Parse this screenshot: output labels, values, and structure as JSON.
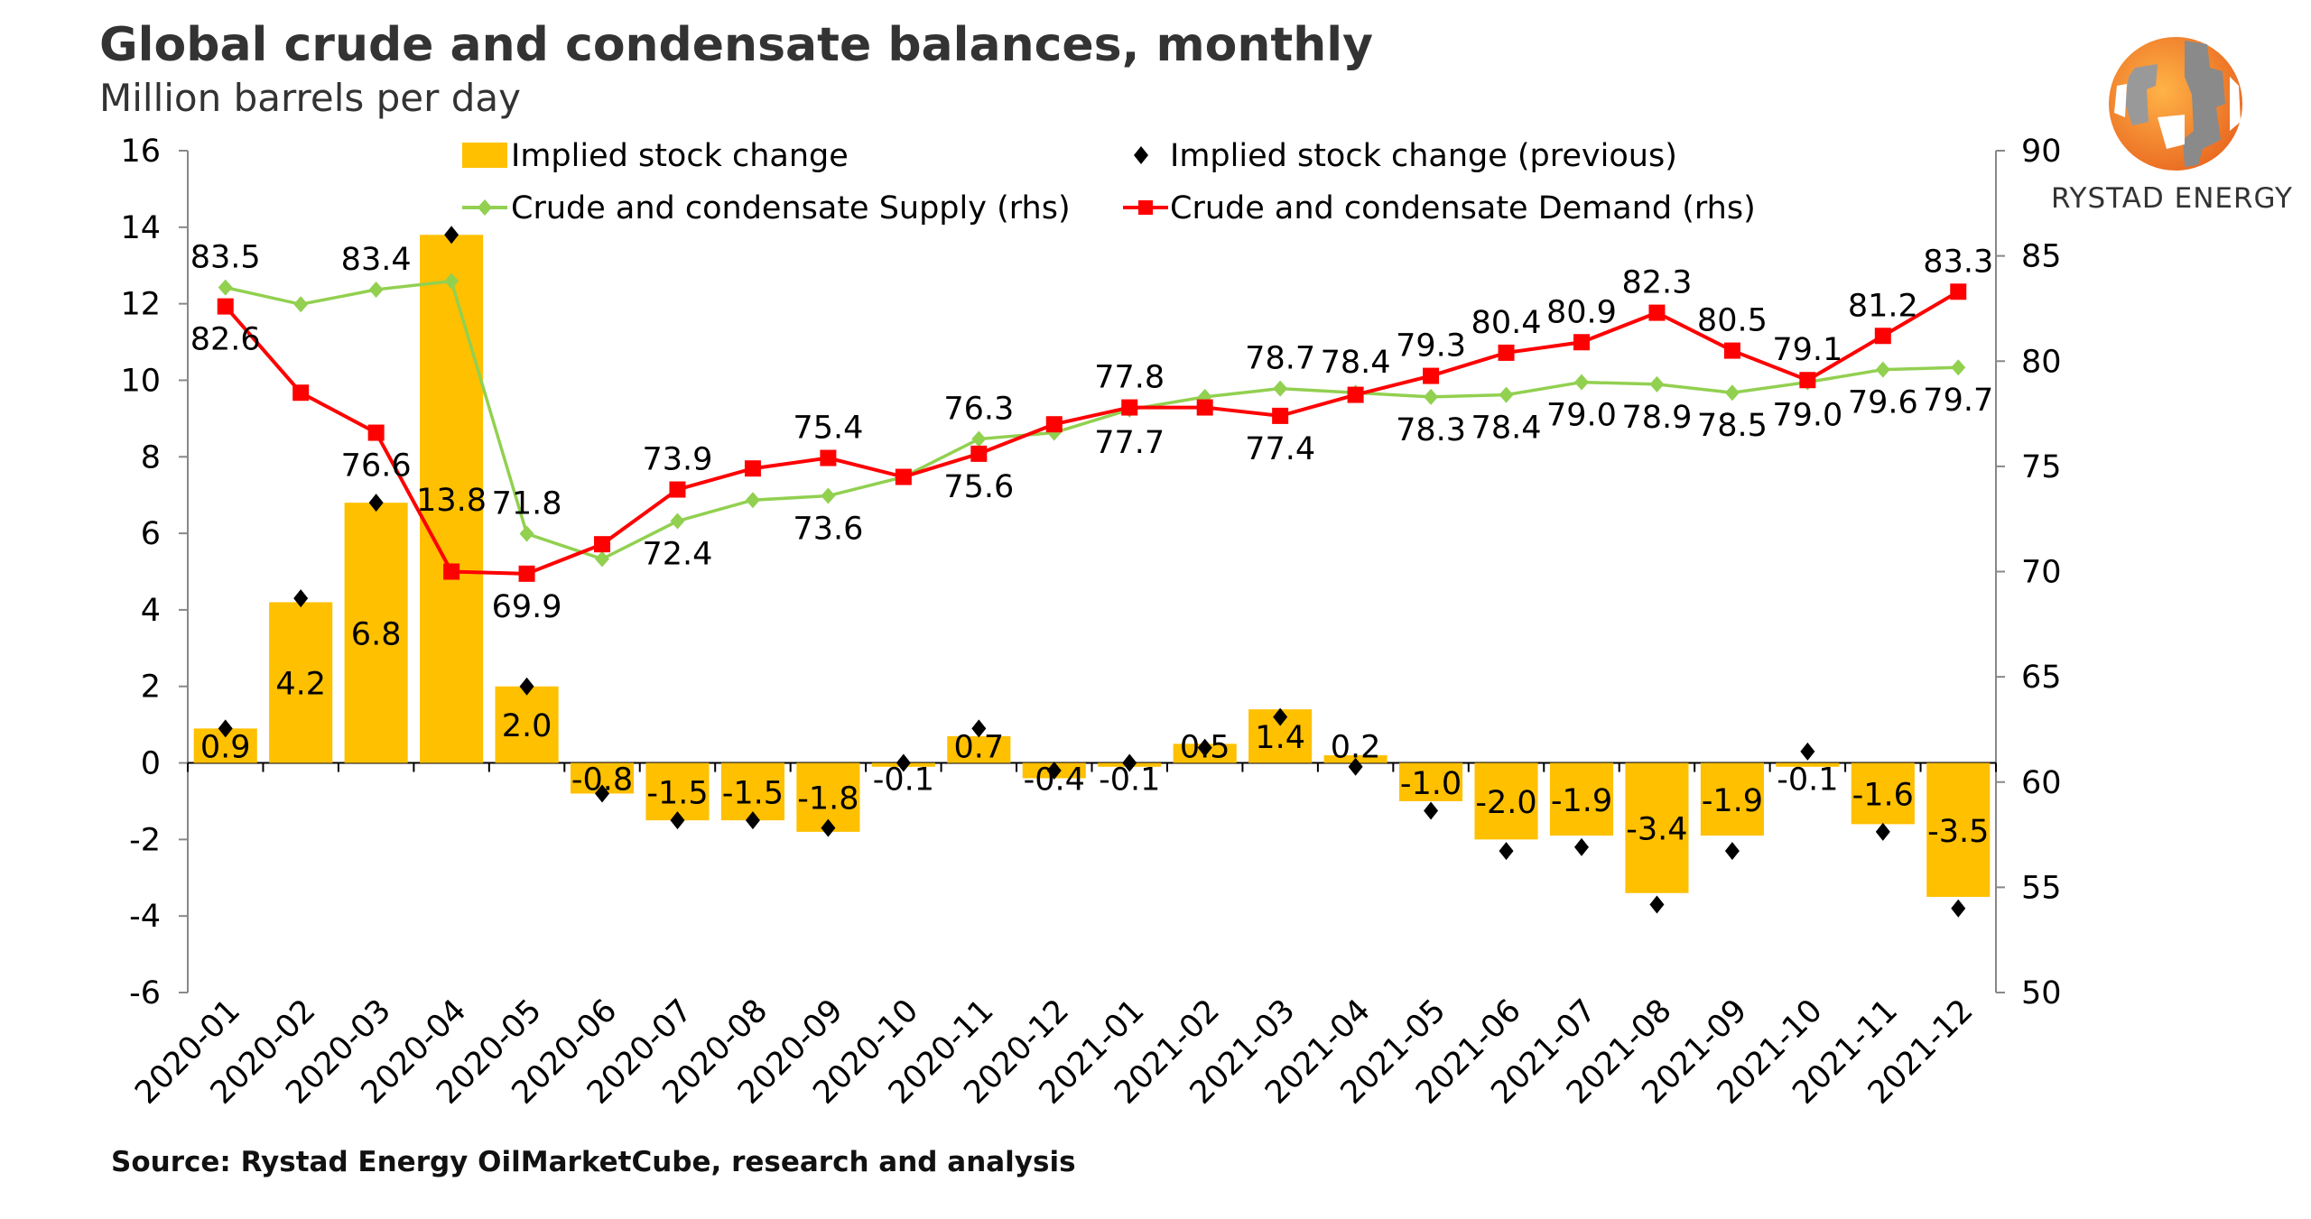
{
  "title": "Global crude and condensate balances, monthly",
  "subtitle": "Million barrels per day",
  "source": "Source: Rystad Energy OilMarketCube, research and analysis",
  "logo": {
    "text": "RYSTAD ENERGY"
  },
  "chart_data": {
    "type": "bar+line",
    "categories": [
      "2020-01",
      "2020-02",
      "2020-03",
      "2020-04",
      "2020-05",
      "2020-06",
      "2020-07",
      "2020-08",
      "2020-09",
      "2020-10",
      "2020-11",
      "2020-12",
      "2021-01",
      "2021-02",
      "2021-03",
      "2021-04",
      "2021-05",
      "2021-06",
      "2021-07",
      "2021-08",
      "2021-09",
      "2021-10",
      "2021-11",
      "2021-12"
    ],
    "y_left": {
      "range": [
        -6,
        16
      ],
      "ticks": [
        -6,
        -4,
        -2,
        0,
        2,
        4,
        6,
        8,
        10,
        12,
        14,
        16
      ]
    },
    "y_right": {
      "range": [
        50,
        90
      ],
      "ticks": [
        50,
        55,
        60,
        65,
        70,
        75,
        80,
        85,
        90
      ]
    },
    "grid": false,
    "legend_position": "top",
    "series": [
      {
        "name": "Implied stock change",
        "type": "bar",
        "axis": "left",
        "color": "#FFC000",
        "values": [
          0.9,
          4.2,
          6.8,
          13.8,
          2.0,
          -0.8,
          -1.5,
          -1.5,
          -1.8,
          -0.1,
          0.7,
          -0.4,
          -0.1,
          0.5,
          1.4,
          0.2,
          -1.0,
          -2.0,
          -1.9,
          -3.4,
          -1.9,
          -0.1,
          -1.6,
          -3.5
        ],
        "labels": [
          "0.9",
          "4.2",
          "6.8",
          "13.8",
          "2.0",
          "-0.8",
          "-1.5",
          "-1.5",
          "-1.8",
          "-0.1",
          "0.7",
          "-0.4",
          "-0.1",
          "0.5",
          "1.4",
          "0.2",
          "-1.0",
          "-2.0",
          "-1.9",
          "-3.4",
          "-1.9",
          "-0.1",
          "-1.6",
          "-3.5"
        ]
      },
      {
        "name": "Implied stock change (previous)",
        "type": "scatter",
        "axis": "left",
        "color": "#000000",
        "marker": "diamond",
        "values": [
          0.9,
          4.3,
          6.8,
          13.8,
          2.0,
          -0.8,
          -1.5,
          -1.5,
          -1.7,
          0.0,
          0.9,
          -0.2,
          0.0,
          0.4,
          1.2,
          -0.1,
          -1.25,
          -2.3,
          -2.2,
          -3.7,
          -2.3,
          0.3,
          -1.8,
          -3.8
        ]
      },
      {
        "name": "Crude and condensate Supply (rhs)",
        "type": "line",
        "axis": "right",
        "color": "#92D050",
        "marker": "diamond",
        "values": [
          83.5,
          82.7,
          83.4,
          83.8,
          71.8,
          70.6,
          72.4,
          73.4,
          73.6,
          74.5,
          76.3,
          76.6,
          77.7,
          78.3,
          78.7,
          78.5,
          78.3,
          78.4,
          79.0,
          78.9,
          78.5,
          79.0,
          79.6,
          79.7
        ],
        "labels": [
          "83.5",
          null,
          "83.4",
          null,
          "71.8",
          null,
          "72.4",
          null,
          "73.6",
          null,
          "76.3",
          null,
          "77.7",
          null,
          "78.7",
          null,
          "78.3",
          "78.4",
          "79.0",
          "78.9",
          "78.5",
          "79.0",
          "79.6",
          "79.7"
        ]
      },
      {
        "name": "Crude and condensate Demand (rhs)",
        "type": "line",
        "axis": "right",
        "color": "#FF0000",
        "marker": "square",
        "values": [
          82.6,
          78.5,
          76.6,
          70.0,
          69.9,
          71.3,
          73.9,
          74.9,
          75.4,
          74.5,
          75.6,
          77.0,
          77.8,
          77.8,
          77.4,
          78.4,
          79.3,
          80.4,
          80.9,
          82.3,
          80.5,
          79.1,
          81.2,
          83.3
        ],
        "labels": [
          "82.6",
          null,
          "76.6",
          null,
          "69.9",
          null,
          "73.9",
          null,
          "75.4",
          null,
          "75.6",
          null,
          "77.8",
          null,
          "77.4",
          "78.4",
          "79.3",
          "80.4",
          "80.9",
          "82.3",
          "80.5",
          "79.1",
          "81.2",
          "83.3"
        ]
      }
    ]
  }
}
